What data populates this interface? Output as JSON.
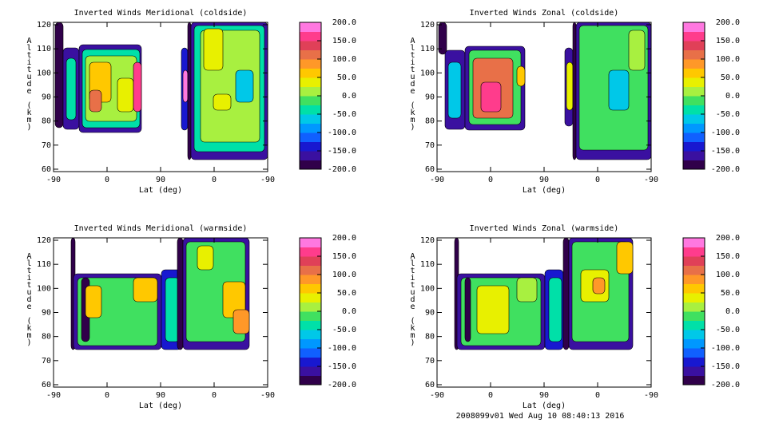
{
  "chart_data": [
    {
      "type": "contour",
      "title": "Inverted Winds Meridional (coldside)",
      "xlabel": "Lat (deg)",
      "ylabel": "Altitude (km)",
      "xticks": [
        "-90",
        "0",
        "90",
        "0",
        "-90"
      ],
      "ylim": [
        59,
        121
      ],
      "yticks": [
        60,
        70,
        80,
        90,
        100,
        110,
        120
      ],
      "colorbar": {
        "clim": [
          -200,
          200
        ],
        "ticks": [
          {
            "value": 200,
            "label": "200.0"
          },
          {
            "value": 150,
            "label": "150.0"
          },
          {
            "value": 100,
            "label": "100.0"
          },
          {
            "value": 50,
            "label": "50.0"
          },
          {
            "value": 0,
            "label": "0.0"
          },
          {
            "value": -50,
            "label": "-50.0"
          },
          {
            "value": -100,
            "label": "-100.0"
          },
          {
            "value": -150,
            "label": "-150.0"
          },
          {
            "value": -200,
            "label": "-200.0"
          }
        ],
        "colors": [
          "#30004a",
          "#3a10a0",
          "#1818d0",
          "#1060ff",
          "#0098ff",
          "#00c8e8",
          "#00e0a8",
          "#40e060",
          "#a8f040",
          "#e8f000",
          "#ffc800",
          "#ff9828",
          "#e87048",
          "#e04058",
          "#ff3c8c",
          "#ff78e0"
        ]
      }
    },
    {
      "type": "contour",
      "title": "Inverted Winds Zonal (coldside)",
      "xlabel": "Lat (deg)",
      "ylabel": "Altitude (km)",
      "xticks": [
        "-90",
        "0",
        "90",
        "0",
        "-90"
      ],
      "ylim": [
        59,
        121
      ],
      "yticks": [
        60,
        70,
        80,
        90,
        100,
        110,
        120
      ],
      "colorbar": {
        "clim": [
          -200,
          200
        ],
        "ticks": [
          {
            "value": 200,
            "label": "200.0"
          },
          {
            "value": 150,
            "label": "150.0"
          },
          {
            "value": 100,
            "label": "100.0"
          },
          {
            "value": 50,
            "label": "50.0"
          },
          {
            "value": 0,
            "label": "0.0"
          },
          {
            "value": -50,
            "label": "-50.0"
          },
          {
            "value": -100,
            "label": "-100.0"
          },
          {
            "value": -150,
            "label": "-150.0"
          },
          {
            "value": -200,
            "label": "-200.0"
          }
        ],
        "colors": [
          "#30004a",
          "#3a10a0",
          "#1818d0",
          "#1060ff",
          "#0098ff",
          "#00c8e8",
          "#00e0a8",
          "#40e060",
          "#a8f040",
          "#e8f000",
          "#ffc800",
          "#ff9828",
          "#e87048",
          "#e04058",
          "#ff3c8c",
          "#ff78e0"
        ]
      }
    },
    {
      "type": "contour",
      "title": "Inverted Winds Meridional (warmside)",
      "xlabel": "Lat (deg)",
      "ylabel": "Altitude (km)",
      "xticks": [
        "-90",
        "0",
        "90",
        "0",
        "-90"
      ],
      "ylim": [
        59,
        121
      ],
      "yticks": [
        60,
        70,
        80,
        90,
        100,
        110,
        120
      ],
      "colorbar": {
        "clim": [
          -200,
          200
        ],
        "ticks": [
          {
            "value": 200,
            "label": "200.0"
          },
          {
            "value": 150,
            "label": "150.0"
          },
          {
            "value": 100,
            "label": "100.0"
          },
          {
            "value": 50,
            "label": "50.0"
          },
          {
            "value": 0,
            "label": "0.0"
          },
          {
            "value": -50,
            "label": "-50.0"
          },
          {
            "value": -100,
            "label": "-100.0"
          },
          {
            "value": -150,
            "label": "-150.0"
          },
          {
            "value": -200,
            "label": "-200.0"
          }
        ],
        "colors": [
          "#30004a",
          "#3a10a0",
          "#1818d0",
          "#1060ff",
          "#0098ff",
          "#00c8e8",
          "#00e0a8",
          "#40e060",
          "#a8f040",
          "#e8f000",
          "#ffc800",
          "#ff9828",
          "#e87048",
          "#e04058",
          "#ff3c8c",
          "#ff78e0"
        ]
      }
    },
    {
      "type": "contour",
      "title": "Inverted Winds Zonal (warmside)",
      "xlabel": "Lat (deg)",
      "ylabel": "Altitude (km)",
      "xticks": [
        "-90",
        "0",
        "90",
        "0",
        "-90"
      ],
      "ylim": [
        59,
        121
      ],
      "yticks": [
        60,
        70,
        80,
        90,
        100,
        110,
        120
      ],
      "colorbar": {
        "clim": [
          -200,
          200
        ],
        "ticks": [
          {
            "value": 200,
            "label": "200.0"
          },
          {
            "value": 150,
            "label": "150.0"
          },
          {
            "value": 100,
            "label": "100.0"
          },
          {
            "value": 50,
            "label": "50.0"
          },
          {
            "value": 0,
            "label": "0.0"
          },
          {
            "value": -50,
            "label": "-50.0"
          },
          {
            "value": -100,
            "label": "-100.0"
          },
          {
            "value": -150,
            "label": "-150.0"
          },
          {
            "value": -200,
            "label": "-200.0"
          }
        ],
        "colors": [
          "#30004a",
          "#3a10a0",
          "#1818d0",
          "#1060ff",
          "#0098ff",
          "#00c8e8",
          "#00e0a8",
          "#40e060",
          "#a8f040",
          "#e8f000",
          "#ffc800",
          "#ff9828",
          "#e87048",
          "#e04058",
          "#ff3c8c",
          "#ff78e0"
        ]
      }
    }
  ],
  "footer": "2008099v01 Wed Aug 10 08:40:13 2016"
}
